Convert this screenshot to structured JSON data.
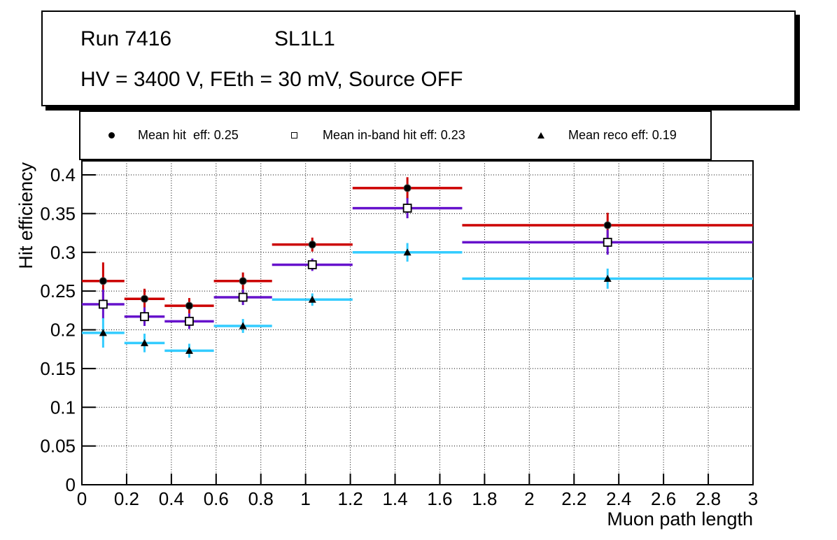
{
  "title_box": {
    "run": "Run 7416",
    "chamber": "SL1L1",
    "conditions": "HV = 3400 V, FEth = 30 mV, Source OFF"
  },
  "legend": {
    "entries": [
      {
        "marker": "filled-circle-icon",
        "label": "Mean hit  eff: 0.25"
      },
      {
        "marker": "open-square-icon",
        "label": "Mean in-band hit eff: 0.23"
      },
      {
        "marker": "filled-triangle-icon",
        "label": "Mean reco eff: 0.19"
      }
    ]
  },
  "chart_data": {
    "type": "scatter",
    "title": "",
    "xlabel": "Muon path length",
    "ylabel": "Hit efficiency",
    "xlim": [
      0,
      3
    ],
    "ylim": [
      0,
      0.418
    ],
    "grid": "dotted",
    "legend_position": "top",
    "x_ticks": [
      0,
      0.2,
      0.4,
      0.6,
      0.8,
      1.0,
      1.2,
      1.4,
      1.6,
      1.8,
      2.0,
      2.2,
      2.4,
      2.6,
      2.8,
      3.0
    ],
    "x_tick_labels": [
      "0",
      "0.2",
      "0.4",
      "0.6",
      "0.8",
      "1",
      "1.2",
      "1.4",
      "1.6",
      "1.8",
      "2",
      "2.2",
      "2.4",
      "2.6",
      "2.8",
      "3"
    ],
    "y_ticks": [
      0,
      0.05,
      0.1,
      0.15,
      0.2,
      0.25,
      0.3,
      0.35,
      0.4
    ],
    "y_tick_labels": [
      "0",
      "0.05",
      "0.1",
      "0.15",
      "0.2",
      "0.25",
      "0.3",
      "0.35",
      "0.4"
    ],
    "bin_edges": [
      0,
      0.19,
      0.37,
      0.59,
      0.85,
      1.21,
      1.7,
      3.0
    ],
    "bin_centers": [
      0.095,
      0.28,
      0.48,
      0.72,
      1.03,
      1.455,
      2.35
    ],
    "frame_color": "#000000",
    "text_color": "#000000",
    "series": [
      {
        "name": "Mean hit eff",
        "mean": 0.25,
        "marker": "filled-circle",
        "marker_color": "#000000",
        "color": "#cc0000",
        "values": [
          0.263,
          0.24,
          0.231,
          0.263,
          0.31,
          0.383,
          0.335
        ],
        "yerr": [
          0.024,
          0.013,
          0.01,
          0.011,
          0.009,
          0.014,
          0.016
        ]
      },
      {
        "name": "Mean in-band hit eff",
        "mean": 0.23,
        "marker": "open-square",
        "marker_color": "#000000",
        "color": "#6612cc",
        "values": [
          0.233,
          0.217,
          0.211,
          0.242,
          0.284,
          0.357,
          0.313
        ],
        "yerr": [
          0.019,
          0.012,
          0.01,
          0.01,
          0.008,
          0.013,
          0.016
        ]
      },
      {
        "name": "Mean reco eff",
        "mean": 0.19,
        "marker": "filled-triangle",
        "marker_color": "#000000",
        "color": "#33ccff",
        "values": [
          0.196,
          0.183,
          0.173,
          0.205,
          0.239,
          0.3,
          0.266
        ],
        "yerr": [
          0.019,
          0.012,
          0.009,
          0.009,
          0.008,
          0.012,
          0.013
        ]
      }
    ]
  }
}
